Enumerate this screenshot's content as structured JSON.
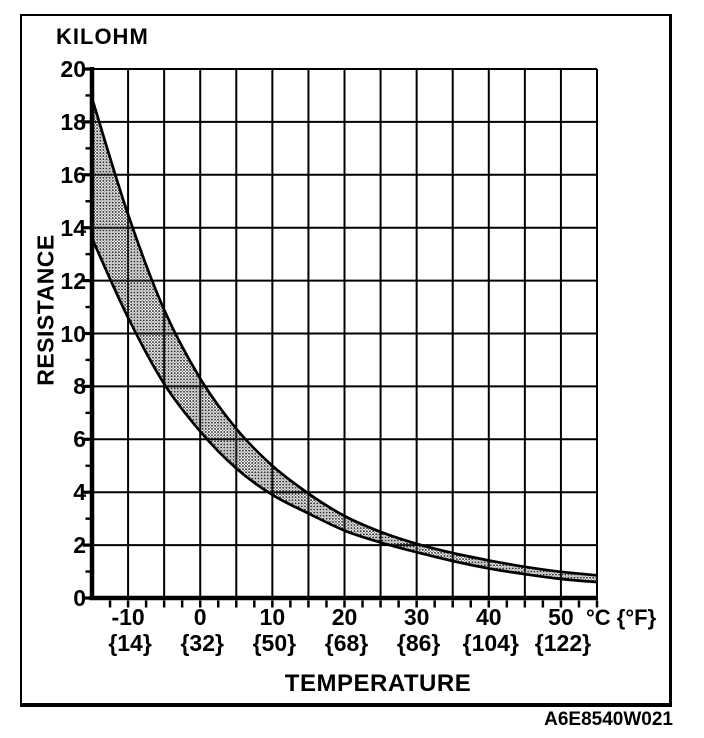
{
  "figure": {
    "y_unit_label": "KILOHM",
    "y_axis_label": "RESISTANCE",
    "x_axis_label": "TEMPERATURE",
    "x_unit_label": "°C {°F}",
    "figure_code": "A6E8540W021"
  },
  "chart_data": {
    "type": "area",
    "title": "KILOHM",
    "xlabel": "TEMPERATURE",
    "ylabel": "RESISTANCE",
    "xlim": [
      -15,
      55
    ],
    "ylim": [
      0,
      20
    ],
    "x": [
      -15,
      -10,
      -5,
      0,
      5,
      10,
      15,
      20,
      25,
      30,
      35,
      40,
      45,
      50,
      55
    ],
    "series": [
      {
        "name": "resistance_upper_limit_kilohm",
        "values": [
          18.9,
          14.5,
          10.9,
          8.3,
          6.4,
          5.0,
          3.95,
          3.1,
          2.5,
          2.05,
          1.7,
          1.42,
          1.18,
          0.99,
          0.86
        ]
      },
      {
        "name": "resistance_lower_limit_kilohm",
        "values": [
          13.6,
          10.6,
          8.1,
          6.3,
          4.9,
          3.9,
          3.2,
          2.55,
          2.1,
          1.73,
          1.4,
          1.12,
          0.9,
          0.72,
          0.6
        ]
      }
    ],
    "band_between_series": true,
    "grid": true,
    "x_grid_step": 5,
    "x_minor_tick_step": 2.5,
    "y_grid_step": 2,
    "y_minor_tick_step": 1,
    "x_major_ticks": [
      -10,
      0,
      10,
      20,
      30,
      40,
      50
    ],
    "x_tick_labels_celsius": [
      "-10",
      "0",
      "10",
      "20",
      "30",
      "40",
      "50"
    ],
    "x_tick_labels_fahrenheit": [
      "{14}",
      "{32}",
      "{50}",
      "{68}",
      "{86}",
      "{104}",
      "{122}"
    ],
    "y_ticks": [
      0,
      2,
      4,
      6,
      8,
      10,
      12,
      14,
      16,
      18,
      20
    ],
    "y_tick_labels": [
      "0",
      "2",
      "4",
      "6",
      "8",
      "10",
      "12",
      "14",
      "16",
      "18",
      "20"
    ],
    "colors": {
      "ink": "#000000",
      "paper": "#ffffff",
      "band_dot": "#2e2e2e"
    }
  }
}
